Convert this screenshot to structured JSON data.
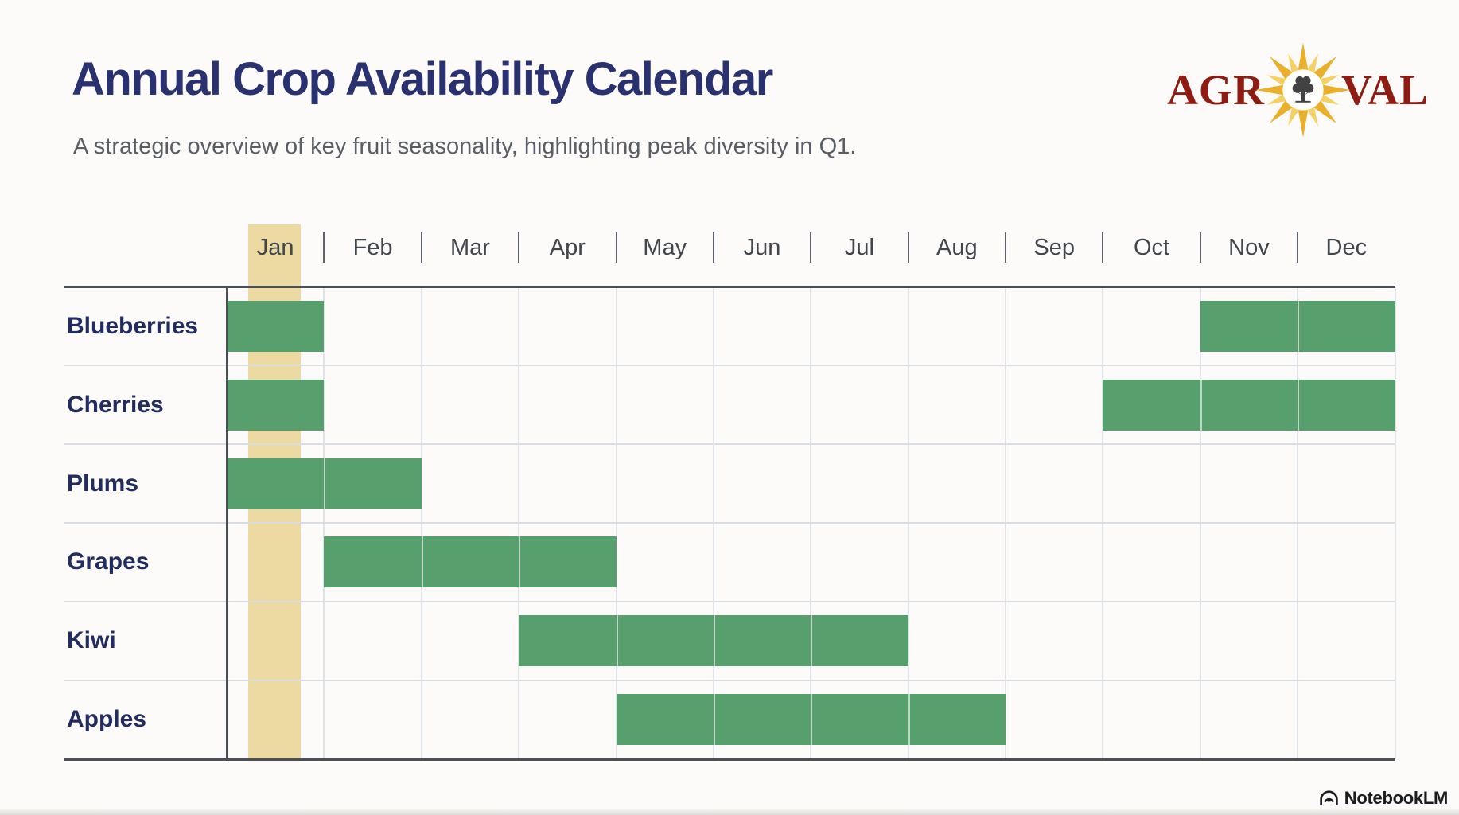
{
  "header": {
    "title": "Annual Crop Availability Calendar",
    "subtitle": "A strategic overview of key fruit seasonality, highlighting peak diversity in Q1."
  },
  "logo": {
    "word_start": "AGR",
    "word_end": "VAL",
    "text_color": "#8e1c12",
    "sun_icon": "sun-with-tree-icon",
    "sun_color": "#eab02c",
    "sun_color_light": "#f5d063"
  },
  "chart_data": {
    "type": "gantt",
    "title": "Annual Crop Availability Calendar",
    "months": [
      "Jan",
      "Feb",
      "Mar",
      "Apr",
      "May",
      "Jun",
      "Jul",
      "Aug",
      "Sep",
      "Oct",
      "Nov",
      "Dec"
    ],
    "highlighted_month": "Jan",
    "rows": [
      {
        "label": "Blueberries",
        "available_months": [
          [
            1,
            1
          ],
          [
            11,
            12
          ]
        ]
      },
      {
        "label": "Cherries",
        "available_months": [
          [
            1,
            1
          ],
          [
            10,
            12
          ]
        ]
      },
      {
        "label": "Plums",
        "available_months": [
          [
            1,
            2
          ]
        ]
      },
      {
        "label": "Grapes",
        "available_months": [
          [
            2,
            4
          ]
        ]
      },
      {
        "label": "Kiwi",
        "available_months": [
          [
            4,
            7
          ]
        ]
      },
      {
        "label": "Apples",
        "available_months": [
          [
            5,
            8
          ]
        ]
      }
    ],
    "colors": {
      "bar": "#57a06e",
      "highlight": "#edd9a2",
      "border": "#4b4f57",
      "grid": "#e0e3e8",
      "row_divider": "#d9dce1",
      "month_label": "#41454c",
      "row_label": "#232c5f"
    },
    "grid": true,
    "legend_position": "none"
  },
  "footer": {
    "brand": "NotebookLM"
  }
}
